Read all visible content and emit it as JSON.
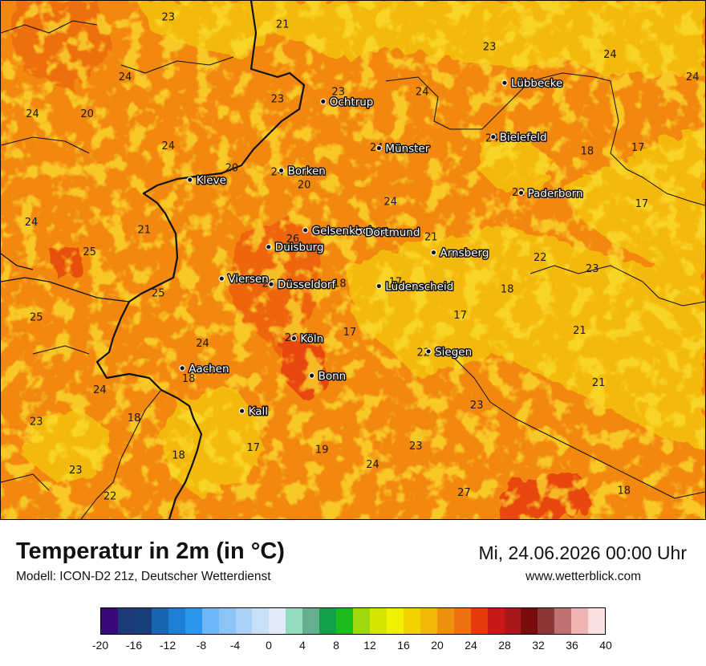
{
  "map": {
    "cities": [
      {
        "name": "Lübbecke",
        "lon": 8.62,
        "lat": 52.31
      },
      {
        "name": "Ochtrup",
        "lon": 7.19,
        "lat": 52.21
      },
      {
        "name": "Bielefeld",
        "lon": 8.53,
        "lat": 52.02
      },
      {
        "name": "Münster",
        "lon": 7.63,
        "lat": 51.96
      },
      {
        "name": "Borken",
        "lon": 6.86,
        "lat": 51.84
      },
      {
        "name": "Kleve",
        "lon": 6.14,
        "lat": 51.79
      },
      {
        "name": "Paderborn",
        "lon": 8.75,
        "lat": 51.72
      },
      {
        "name": "Gelsenkirchen",
        "lon": 7.05,
        "lat": 51.52
      },
      {
        "name": "Dortmund",
        "lon": 7.47,
        "lat": 51.51
      },
      {
        "name": "Duisburg",
        "lon": 6.76,
        "lat": 51.43
      },
      {
        "name": "Arnsberg",
        "lon": 8.06,
        "lat": 51.4
      },
      {
        "name": "Viersen",
        "lon": 6.39,
        "lat": 51.26
      },
      {
        "name": "Düsseldorf",
        "lon": 6.78,
        "lat": 51.23
      },
      {
        "name": "Lüdenscheid",
        "lon": 7.63,
        "lat": 51.22
      },
      {
        "name": "Köln",
        "lon": 6.96,
        "lat": 50.94
      },
      {
        "name": "Siegen",
        "lon": 8.02,
        "lat": 50.87
      },
      {
        "name": "Aachen",
        "lon": 6.08,
        "lat": 50.78
      },
      {
        "name": "Bonn",
        "lon": 7.1,
        "lat": 50.74
      },
      {
        "name": "Kall",
        "lon": 6.55,
        "lat": 50.55
      }
    ],
    "temperatures": [
      {
        "v": "23",
        "lon": 5.97,
        "lat": 52.66
      },
      {
        "v": "21",
        "lon": 6.87,
        "lat": 52.62
      },
      {
        "v": "24",
        "lon": 9.45,
        "lat": 52.46
      },
      {
        "v": "23",
        "lon": 8.5,
        "lat": 52.5
      },
      {
        "v": "24",
        "lon": 10.1,
        "lat": 52.34
      },
      {
        "v": "24",
        "lon": 5.63,
        "lat": 52.34
      },
      {
        "v": "23",
        "lon": 7.31,
        "lat": 52.26
      },
      {
        "v": "24",
        "lon": 7.97,
        "lat": 52.26
      },
      {
        "v": "23",
        "lon": 8.77,
        "lat": 52.3
      },
      {
        "v": "23",
        "lon": 6.83,
        "lat": 52.22
      },
      {
        "v": "24",
        "lon": 4.9,
        "lat": 52.14
      },
      {
        "v": "20",
        "lon": 5.33,
        "lat": 52.14
      },
      {
        "v": "24",
        "lon": 5.97,
        "lat": 51.97
      },
      {
        "v": "24",
        "lon": 8.52,
        "lat": 52.01
      },
      {
        "v": "24",
        "lon": 7.61,
        "lat": 51.96
      },
      {
        "v": "18",
        "lon": 9.27,
        "lat": 51.94
      },
      {
        "v": "17",
        "lon": 9.67,
        "lat": 51.96
      },
      {
        "v": "20",
        "lon": 6.47,
        "lat": 51.85
      },
      {
        "v": "24",
        "lon": 6.83,
        "lat": 51.83
      },
      {
        "v": "20",
        "lon": 7.04,
        "lat": 51.76
      },
      {
        "v": "22",
        "lon": 8.73,
        "lat": 51.72
      },
      {
        "v": "24",
        "lon": 7.72,
        "lat": 51.67
      },
      {
        "v": "17",
        "lon": 9.7,
        "lat": 51.66
      },
      {
        "v": "24",
        "lon": 4.89,
        "lat": 51.56
      },
      {
        "v": "21",
        "lon": 5.78,
        "lat": 51.52
      },
      {
        "v": "24",
        "lon": 7.44,
        "lat": 51.51
      },
      {
        "v": "21",
        "lon": 8.04,
        "lat": 51.48
      },
      {
        "v": "26",
        "lon": 6.95,
        "lat": 51.47
      },
      {
        "v": "25",
        "lon": 5.35,
        "lat": 51.4
      },
      {
        "v": "22",
        "lon": 8.9,
        "lat": 51.37
      },
      {
        "v": "23",
        "lon": 9.31,
        "lat": 51.31
      },
      {
        "v": "18",
        "lon": 7.32,
        "lat": 51.23
      },
      {
        "v": "26",
        "lon": 6.76,
        "lat": 51.23
      },
      {
        "v": "17",
        "lon": 7.76,
        "lat": 51.24
      },
      {
        "v": "18",
        "lon": 8.64,
        "lat": 51.2
      },
      {
        "v": "25",
        "lon": 5.89,
        "lat": 51.18
      },
      {
        "v": "25",
        "lon": 4.93,
        "lat": 51.05
      },
      {
        "v": "17",
        "lon": 8.27,
        "lat": 51.06
      },
      {
        "v": "21",
        "lon": 9.21,
        "lat": 50.98
      },
      {
        "v": "17",
        "lon": 7.4,
        "lat": 50.97
      },
      {
        "v": "26",
        "lon": 6.94,
        "lat": 50.94
      },
      {
        "v": "24",
        "lon": 6.24,
        "lat": 50.91
      },
      {
        "v": "22",
        "lon": 7.98,
        "lat": 50.86
      },
      {
        "v": "18",
        "lon": 6.13,
        "lat": 50.72
      },
      {
        "v": "21",
        "lon": 9.36,
        "lat": 50.7
      },
      {
        "v": "24",
        "lon": 5.43,
        "lat": 50.66
      },
      {
        "v": "23",
        "lon": 8.4,
        "lat": 50.58
      },
      {
        "v": "18",
        "lon": 5.7,
        "lat": 50.51
      },
      {
        "v": "23",
        "lon": 4.93,
        "lat": 50.49
      },
      {
        "v": "23",
        "lon": 7.92,
        "lat": 50.36
      },
      {
        "v": "18",
        "lon": 6.05,
        "lat": 50.31
      },
      {
        "v": "17",
        "lon": 6.64,
        "lat": 50.35
      },
      {
        "v": "19",
        "lon": 7.18,
        "lat": 50.34
      },
      {
        "v": "24",
        "lon": 7.58,
        "lat": 50.26
      },
      {
        "v": "23",
        "lon": 5.24,
        "lat": 50.23
      },
      {
        "v": "27",
        "lon": 8.3,
        "lat": 50.11
      },
      {
        "v": "18",
        "lon": 9.56,
        "lat": 50.12
      },
      {
        "v": "22",
        "lon": 5.51,
        "lat": 50.09
      }
    ]
  },
  "footer": {
    "title": "Temperatur in 2m (in °C)",
    "model": "Modell: ICON-D2 21z, Deutscher Wetterdienst",
    "date": "Mi, 24.06.2026 00:00 Uhr",
    "site": "www.wetterblick.com"
  },
  "legend": {
    "colors": [
      "#3a0a7a",
      "#1c3a78",
      "#163f7c",
      "#1a64b4",
      "#1e7fd6",
      "#2b96ee",
      "#6bb6f5",
      "#8cc4f5",
      "#a8d2f7",
      "#c7e0f7",
      "#e0ecfa",
      "#92dcc0",
      "#64b08e",
      "#14a048",
      "#1dbc1a",
      "#9cd80c",
      "#d4e600",
      "#f0f000",
      "#f2d200",
      "#f2b808",
      "#f09010",
      "#ee7010",
      "#e63a0a",
      "#c81818",
      "#a81818",
      "#7a0c0c",
      "#8c3838",
      "#c07070",
      "#f0b4b4",
      "#fbe0e0"
    ],
    "ticks": [
      "-20",
      "-16",
      "-12",
      "-8",
      "-4",
      "0",
      "4",
      "8",
      "12",
      "16",
      "20",
      "24",
      "28",
      "32",
      "36",
      "40"
    ]
  }
}
